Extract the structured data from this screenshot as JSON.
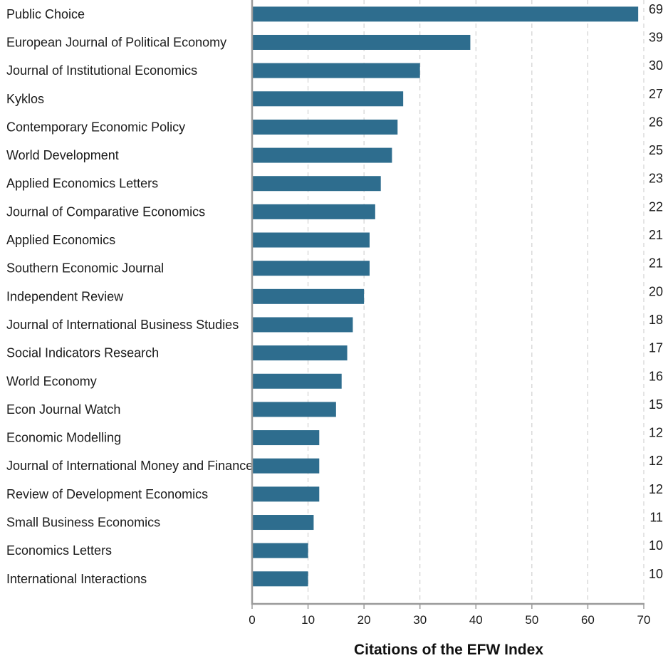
{
  "chart_data": {
    "type": "bar",
    "orientation": "horizontal",
    "title": "",
    "xlabel": "Citations of the EFW Index",
    "ylabel": "",
    "xlim": [
      0,
      70
    ],
    "xticks": [
      0,
      10,
      20,
      30,
      40,
      50,
      60,
      70
    ],
    "grid": true,
    "bar_color": "#2e6d8e",
    "categories": [
      "Public Choice",
      "European Journal of Political Economy",
      "Journal of Institutional Economics",
      "Kyklos",
      "Contemporary Economic Policy",
      "World Development",
      "Applied Economics Letters",
      "Journal of Comparative Economics",
      "Applied Economics",
      "Southern Economic Journal",
      "Independent Review",
      "Journal of International Business Studies",
      "Social Indicators Research",
      "World Economy",
      "Econ Journal Watch",
      "Economic Modelling",
      "Journal of International Money and Finance",
      "Review of Development Economics",
      "Small Business Economics",
      "Economics Letters",
      "International Interactions"
    ],
    "values": [
      69,
      39,
      30,
      27,
      26,
      25,
      23,
      22,
      21,
      21,
      20,
      18,
      17,
      16,
      15,
      12,
      12,
      12,
      11,
      10,
      10
    ]
  }
}
